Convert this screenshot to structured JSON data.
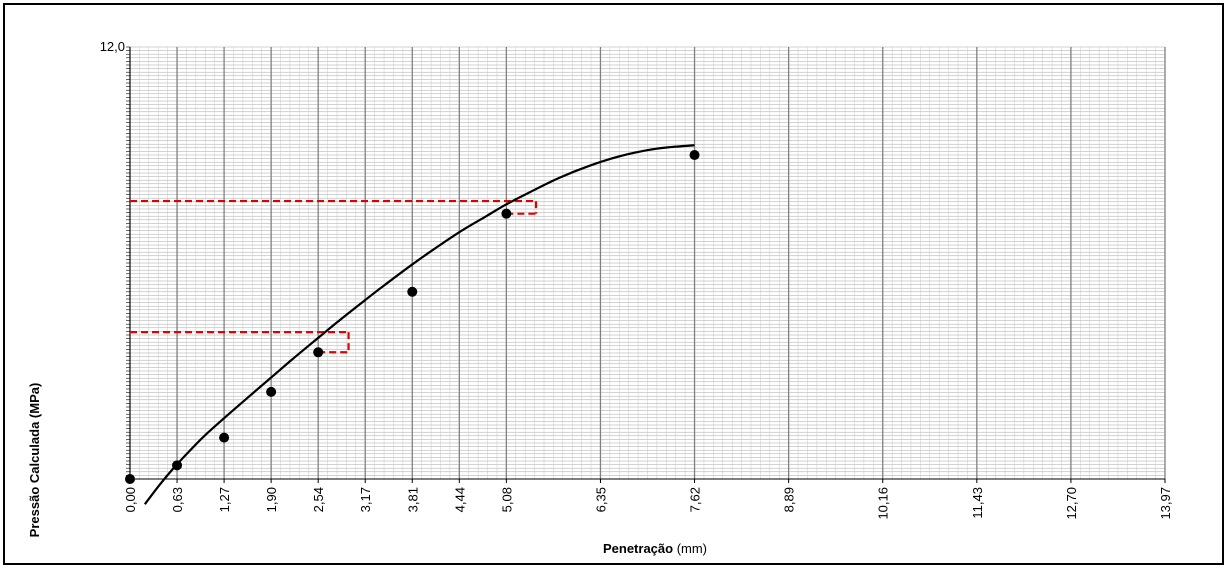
{
  "chart_data": {
    "type": "scatter",
    "xlabel_bold": "Penetração",
    "xlabel_unit": " (mm)",
    "ylabel": "Pressão Calculada (MPa)",
    "x_ticks": [
      "0,00",
      "0,63",
      "1,27",
      "1,90",
      "2,54",
      "3,17",
      "3,81",
      "4,44",
      "5,08",
      "6,35",
      "7,62",
      "8,89",
      "10,16",
      "11,43",
      "12,70",
      "13,97"
    ],
    "x_major_values": [
      0,
      0.635,
      1.27,
      1.905,
      2.54,
      3.175,
      3.81,
      4.445,
      5.08,
      6.35,
      7.62,
      8.89,
      10.16,
      11.43,
      12.7,
      13.97
    ],
    "y_top_label": "12,0",
    "ylim": [
      0,
      12
    ],
    "xlim": [
      0,
      13.97
    ],
    "grid": true,
    "points": [
      {
        "x": 0.0,
        "y": 0.0
      },
      {
        "x": 0.635,
        "y": 0.38
      },
      {
        "x": 1.27,
        "y": 1.15
      },
      {
        "x": 1.905,
        "y": 2.42
      },
      {
        "x": 2.54,
        "y": 3.52
      },
      {
        "x": 3.81,
        "y": 5.2
      },
      {
        "x": 5.08,
        "y": 7.37
      },
      {
        "x": 7.62,
        "y": 9.0
      }
    ],
    "fit_curve": [
      [
        0.2,
        -0.7
      ],
      [
        0.4,
        -0.16
      ],
      [
        0.6,
        0.33
      ],
      [
        0.8,
        0.77
      ],
      [
        1.0,
        1.19
      ],
      [
        1.27,
        1.69
      ],
      [
        1.6,
        2.28
      ],
      [
        1.9,
        2.81
      ],
      [
        2.2,
        3.34
      ],
      [
        2.54,
        3.92
      ],
      [
        2.8,
        4.36
      ],
      [
        3.1,
        4.85
      ],
      [
        3.4,
        5.33
      ],
      [
        3.81,
        5.96
      ],
      [
        4.1,
        6.38
      ],
      [
        4.44,
        6.85
      ],
      [
        4.8,
        7.29
      ],
      [
        5.08,
        7.63
      ],
      [
        5.4,
        7.97
      ],
      [
        5.8,
        8.37
      ],
      [
        6.2,
        8.7
      ],
      [
        6.6,
        8.96
      ],
      [
        7.0,
        9.14
      ],
      [
        7.3,
        9.22
      ],
      [
        7.62,
        9.27
      ]
    ],
    "reference_lines": [
      {
        "x_point": 2.54,
        "x_shift": 2.95,
        "y_curve": 4.08,
        "y_point": 3.52,
        "color": "#e00000"
      },
      {
        "x_point": 5.08,
        "x_shift": 5.48,
        "y_curve": 7.72,
        "y_point": 7.37,
        "color": "#e00000"
      }
    ],
    "colors": {
      "points": "#000000",
      "curve": "#000000",
      "grid": "#a6a6a6",
      "reference": "#e00000"
    }
  }
}
